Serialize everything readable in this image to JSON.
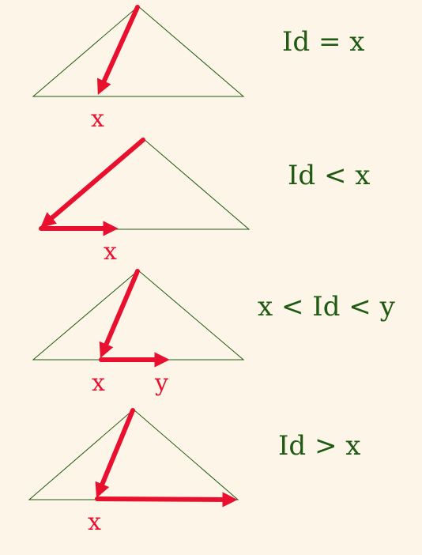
{
  "panels": [
    {
      "relation": "Id = x",
      "labels": [
        "x"
      ]
    },
    {
      "relation": "Id < x",
      "labels": [
        "x"
      ]
    },
    {
      "relation": "x < Id < y",
      "labels": [
        "x",
        "y"
      ]
    },
    {
      "relation": "Id > x",
      "labels": [
        "x"
      ]
    }
  ],
  "colors": {
    "background": "#fdf5e8",
    "triangle": "#1e5a12",
    "arrow": "#e8102e",
    "equation": "#1e5a12",
    "point_label": "#e8102e"
  }
}
